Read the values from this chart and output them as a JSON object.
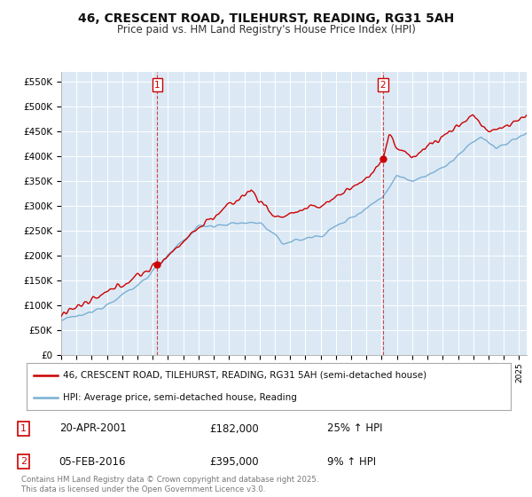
{
  "title": "46, CRESCENT ROAD, TILEHURST, READING, RG31 5AH",
  "subtitle": "Price paid vs. HM Land Registry's House Price Index (HPI)",
  "ylim": [
    0,
    570000
  ],
  "yticks": [
    0,
    50000,
    100000,
    150000,
    200000,
    250000,
    300000,
    350000,
    400000,
    450000,
    500000,
    550000
  ],
  "ytick_labels": [
    "£0",
    "£50K",
    "£100K",
    "£150K",
    "£200K",
    "£250K",
    "£300K",
    "£350K",
    "£400K",
    "£450K",
    "£500K",
    "£550K"
  ],
  "background_color": "#ffffff",
  "plot_bg_color": "#dce9f5",
  "grid_color": "#ffffff",
  "red_color": "#cc0000",
  "blue_color": "#7aafd4",
  "marker1_date": 2001.3,
  "marker1_value": 182000,
  "marker2_date": 2016.08,
  "marker2_value": 395000,
  "legend_label_red": "46, CRESCENT ROAD, TILEHURST, READING, RG31 5AH (semi-detached house)",
  "legend_label_blue": "HPI: Average price, semi-detached house, Reading",
  "annotation1_num": "1",
  "annotation1_date": "20-APR-2001",
  "annotation1_price": "£182,000",
  "annotation1_hpi": "25% ↑ HPI",
  "annotation2_num": "2",
  "annotation2_date": "05-FEB-2016",
  "annotation2_price": "£395,000",
  "annotation2_hpi": "9% ↑ HPI",
  "footer": "Contains HM Land Registry data © Crown copyright and database right 2025.\nThis data is licensed under the Open Government Licence v3.0.",
  "xmin": 1995,
  "xmax": 2025.5
}
